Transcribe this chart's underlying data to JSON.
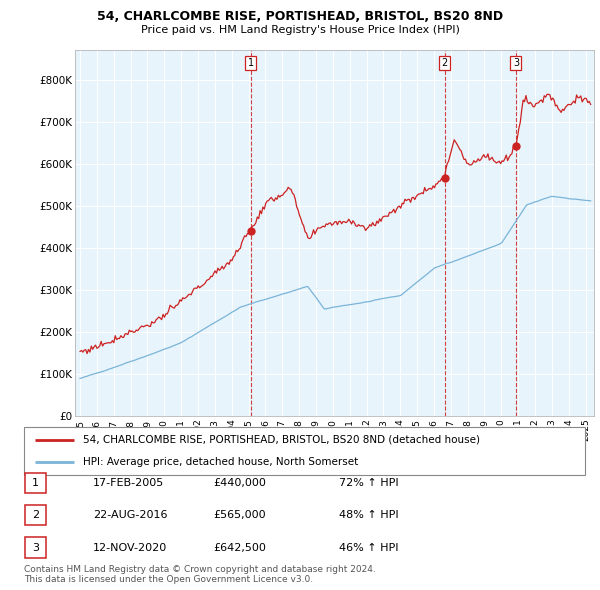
{
  "title1": "54, CHARLCOMBE RISE, PORTISHEAD, BRISTOL, BS20 8ND",
  "title2": "Price paid vs. HM Land Registry's House Price Index (HPI)",
  "yticks": [
    0,
    100000,
    200000,
    300000,
    400000,
    500000,
    600000,
    700000,
    800000
  ],
  "ytick_labels": [
    "£0",
    "£100K",
    "£200K",
    "£300K",
    "£400K",
    "£500K",
    "£600K",
    "£700K",
    "£800K"
  ],
  "hpi_color": "#7ab4d8",
  "price_color": "#cc2222",
  "dashed_line_color": "#cc2222",
  "bg_fill_color": "#ddeeff",
  "transactions": [
    {
      "date_num": 2005.12,
      "price": 440000,
      "label": "1"
    },
    {
      "date_num": 2016.64,
      "price": 565000,
      "label": "2"
    },
    {
      "date_num": 2020.87,
      "price": 642500,
      "label": "3"
    }
  ],
  "transaction_details": [
    {
      "label": "1",
      "date": "17-FEB-2005",
      "price": "£440,000",
      "hpi": "72% ↑ HPI"
    },
    {
      "label": "2",
      "date": "22-AUG-2016",
      "price": "£565,000",
      "hpi": "48% ↑ HPI"
    },
    {
      "label": "3",
      "date": "12-NOV-2020",
      "price": "£642,500",
      "hpi": "46% ↑ HPI"
    }
  ],
  "legend_line1": "54, CHARLCOMBE RISE, PORTISHEAD, BRISTOL, BS20 8ND (detached house)",
  "legend_line2": "HPI: Average price, detached house, North Somerset",
  "footer1": "Contains HM Land Registry data © Crown copyright and database right 2024.",
  "footer2": "This data is licensed under the Open Government Licence v3.0.",
  "xlim_left": 1994.7,
  "xlim_right": 2025.5,
  "ylim_top": 870000
}
